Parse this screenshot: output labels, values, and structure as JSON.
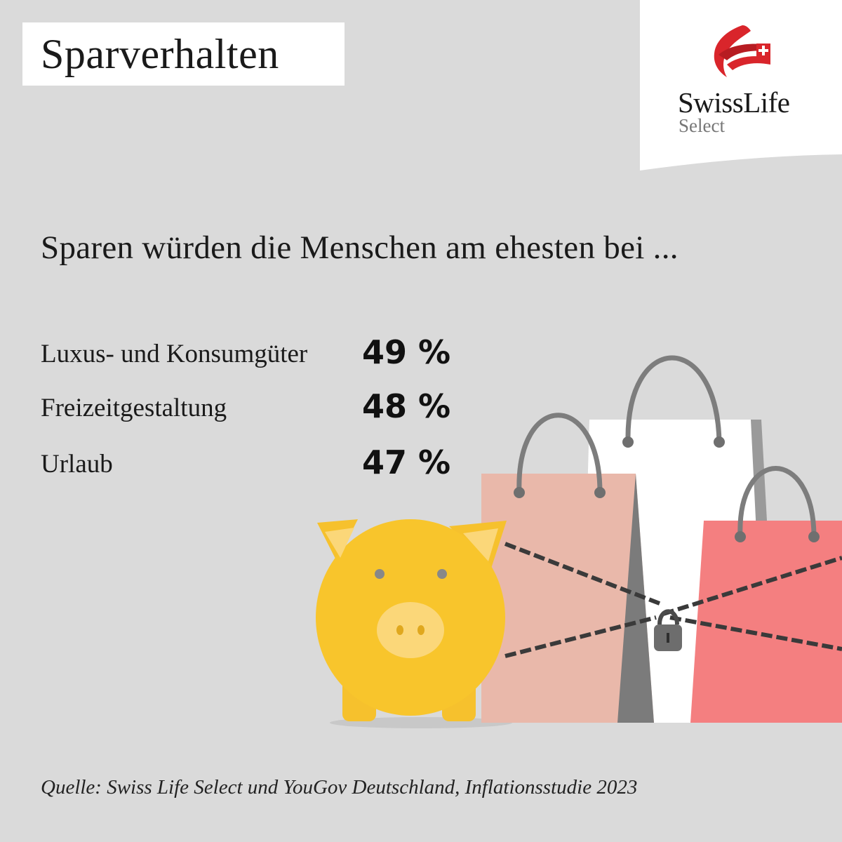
{
  "header": {
    "title": "Sparverhalten"
  },
  "brand": {
    "name": "SwissLife",
    "sub": "Select",
    "color": "#d9252b"
  },
  "chart_data": {
    "type": "table",
    "title": "Sparen würden die Menschen am ehesten bei ...",
    "categories": [
      "Luxus- und Konsumgüter",
      "Freizeitgestaltung",
      "Urlaub"
    ],
    "values": [
      49,
      48,
      47
    ],
    "value_labels": [
      "49 %",
      "48 %",
      "47 %"
    ],
    "unit": "%"
  },
  "illustration": {
    "icons": [
      "piggy-bank-icon",
      "shopping-bag-icon",
      "chain-icon",
      "padlock-icon"
    ],
    "colors": {
      "piggy": "#f6c12d",
      "bag_left": "#e9b8aa",
      "bag_middle": "#ffffff",
      "bag_right": "#f47f80",
      "chain": "#3a3a3a"
    }
  },
  "footer": {
    "source": "Quelle: Swiss Life Select und YouGov Deutschland, Inflationsstudie 2023"
  }
}
